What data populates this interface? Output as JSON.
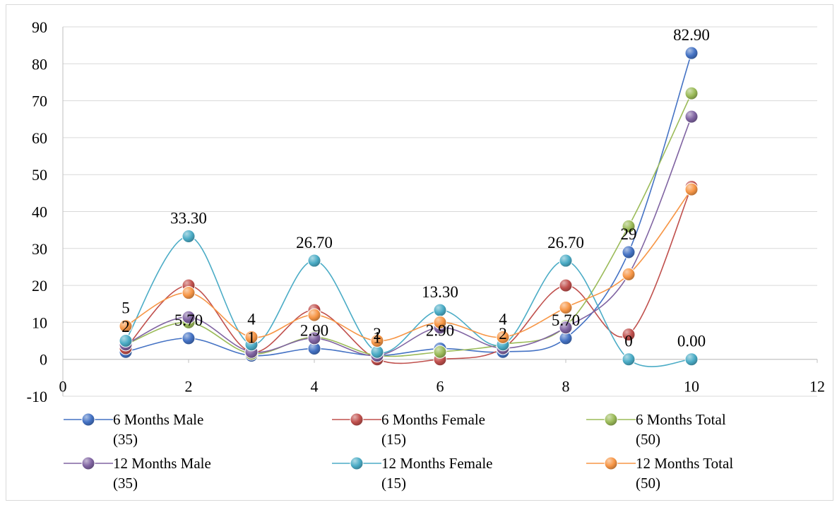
{
  "chart_data": {
    "type": "scatter",
    "smooth_lines": true,
    "title": "",
    "xlabel": "",
    "ylabel": "",
    "xlim": [
      0,
      12
    ],
    "ylim": [
      -10,
      90
    ],
    "x_ticks": [
      0,
      2,
      4,
      6,
      8,
      10,
      12
    ],
    "y_ticks": [
      -10,
      0,
      10,
      20,
      30,
      40,
      50,
      60,
      70,
      80,
      90
    ],
    "x_tick_labels": [
      "0",
      "2",
      "4",
      "6",
      "8",
      "10",
      "12"
    ],
    "y_tick_labels": [
      "-10",
      "0",
      "10",
      "20",
      "30",
      "40",
      "50",
      "60",
      "70",
      "80",
      "90"
    ],
    "grid": "horizontal",
    "legend_position": "bottom",
    "x": [
      1,
      2,
      3,
      4,
      5,
      6,
      7,
      8,
      9,
      10
    ],
    "series": [
      {
        "name": "6 Months Male\n(35)",
        "color": "#4472C4",
        "values": [
          2,
          5.7,
          1,
          2.9,
          1,
          2.9,
          2,
          5.7,
          29,
          82.9
        ]
      },
      {
        "name": "6 Months Female\n(15)",
        "color": "#C0504D",
        "values": [
          3,
          20,
          2,
          13.3,
          0,
          0,
          3,
          20,
          6.7,
          46.7
        ]
      },
      {
        "name": "6 Months Total\n(50)",
        "color": "#9BBB59",
        "values": [
          4,
          10,
          1.5,
          6,
          1,
          2,
          4,
          9,
          36,
          72
        ]
      },
      {
        "name": "12 Months Male\n(35)",
        "color": "#8064A2",
        "values": [
          4,
          11.4,
          2,
          5.7,
          1,
          8.6,
          3,
          8.6,
          23,
          65.7
        ]
      },
      {
        "name": "12 Months Female\n(15)",
        "color": "#4BACC6",
        "values": [
          5,
          33.3,
          4,
          26.7,
          2,
          13.3,
          4,
          26.7,
          0,
          0
        ]
      },
      {
        "name": "12 Months Total\n(50)",
        "color": "#F79646",
        "values": [
          9,
          18,
          6,
          12,
          5,
          10,
          6,
          14,
          23,
          46
        ]
      }
    ],
    "data_labels": [
      {
        "x": 1,
        "y": 9,
        "text": "5"
      },
      {
        "x": 1,
        "y": 4,
        "text": "2"
      },
      {
        "x": 2,
        "y": 33.3,
        "text": "33.30"
      },
      {
        "x": 2,
        "y": 5.7,
        "text": "5.70"
      },
      {
        "x": 3,
        "y": 6,
        "text": "4"
      },
      {
        "x": 3,
        "y": 1,
        "text": "1"
      },
      {
        "x": 4,
        "y": 26.7,
        "text": "26.70"
      },
      {
        "x": 4,
        "y": 2.9,
        "text": "2.90"
      },
      {
        "x": 5,
        "y": 2,
        "text": "2"
      },
      {
        "x": 5,
        "y": 1,
        "text": "1"
      },
      {
        "x": 6,
        "y": 13.3,
        "text": "13.30"
      },
      {
        "x": 6,
        "y": 2.9,
        "text": "2.90"
      },
      {
        "x": 7,
        "y": 6,
        "text": "4"
      },
      {
        "x": 7,
        "y": 2,
        "text": "2"
      },
      {
        "x": 8,
        "y": 26.7,
        "text": "26.70"
      },
      {
        "x": 8,
        "y": 5.7,
        "text": "5.70"
      },
      {
        "x": 9,
        "y": 29,
        "text": "29"
      },
      {
        "x": 9,
        "y": 0,
        "text": "0"
      },
      {
        "x": 10,
        "y": 82.9,
        "text": "82.90"
      },
      {
        "x": 10,
        "y": 0,
        "text": "0.00"
      }
    ]
  }
}
